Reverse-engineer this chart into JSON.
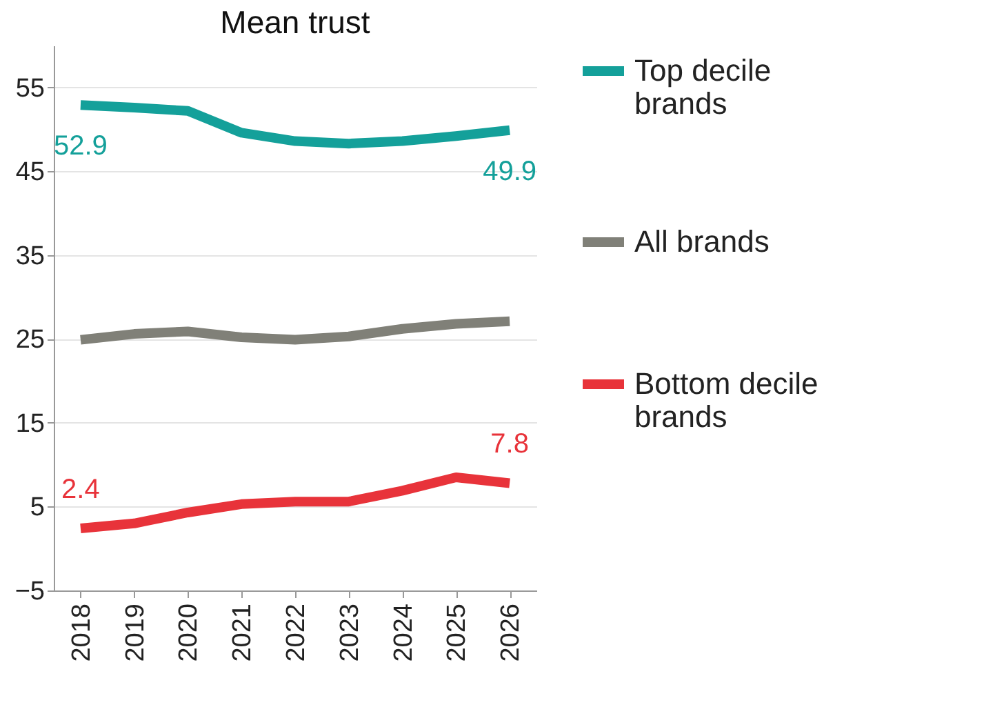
{
  "chart_data": {
    "type": "line",
    "title": "Mean trust",
    "categories": [
      "2018",
      "2019",
      "2020",
      "2021",
      "2022",
      "2023",
      "2024",
      "2025",
      "2026"
    ],
    "series": [
      {
        "name": "Top decile brands",
        "color": "#14a09a",
        "values": [
          52.9,
          52.6,
          52.2,
          49.6,
          48.6,
          48.3,
          48.6,
          49.2,
          49.9
        ],
        "value_labels": [
          "52.9",
          null,
          null,
          null,
          null,
          null,
          null,
          null,
          "49.9"
        ]
      },
      {
        "name": "All brands",
        "color": "#808078",
        "values": [
          24.9,
          25.6,
          25.9,
          25.2,
          24.9,
          25.3,
          26.2,
          26.8,
          27.1
        ]
      },
      {
        "name": "Bottom decile brands",
        "color": "#e8333a",
        "values": [
          2.4,
          3.0,
          4.3,
          5.3,
          5.6,
          5.6,
          6.9,
          8.5,
          7.8
        ],
        "value_labels": [
          "2.4",
          null,
          null,
          null,
          null,
          null,
          null,
          null,
          "7.8"
        ]
      }
    ],
    "ylim": [
      -5,
      60
    ],
    "yticks": [
      -5,
      5,
      15,
      25,
      35,
      45,
      55
    ],
    "grid": "y",
    "legend": "right",
    "marker": "none",
    "line_style": "solid"
  }
}
